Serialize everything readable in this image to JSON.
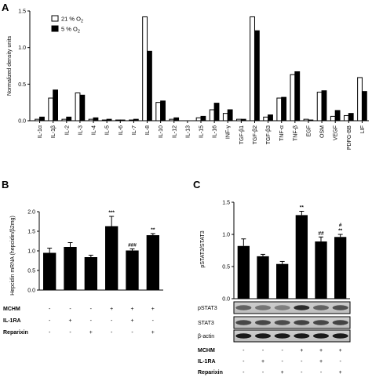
{
  "chart_data": [
    {
      "panel": "A",
      "type": "bar",
      "ylabel": "Normalized density units",
      "ylim": [
        0,
        1.5
      ],
      "yticks": [
        "0.0",
        "0.5",
        "1.0",
        "1.5"
      ],
      "legend": {
        "placement": "top-left",
        "entries": [
          "21 % O",
          "5 % O"
        ],
        "subscript": "2"
      },
      "categories": [
        "IL-1α",
        "IL-1β",
        "IL-2",
        "IL-3",
        "IL-4",
        "IL-5",
        "IL-6",
        "IL-7",
        "IL-8",
        "IL-10",
        "IL-12",
        "IL-13",
        "IL-15",
        "IL-16",
        "INF-γ",
        "TGF-β1",
        "TGF-β2",
        "TGF-β3",
        "TNF-α",
        "TNF-β",
        "EGF",
        "OSM",
        "VEGF",
        "PDFG-BB",
        "LIF"
      ],
      "series": [
        {
          "name": "21 % O2",
          "color": "#ffffff",
          "values": [
            0.02,
            0.31,
            0.02,
            0.38,
            0.02,
            0.01,
            0.01,
            0.01,
            1.42,
            0.25,
            0.02,
            0.0,
            0.04,
            0.15,
            0.1,
            0.02,
            1.42,
            0.05,
            0.31,
            0.63,
            0.02,
            0.39,
            0.06,
            0.07,
            0.59
          ]
        },
        {
          "name": "5 % O2",
          "color": "#000000",
          "values": [
            0.05,
            0.42,
            0.05,
            0.35,
            0.04,
            0.02,
            0.01,
            0.02,
            0.95,
            0.27,
            0.04,
            0.0,
            0.06,
            0.24,
            0.15,
            0.02,
            1.23,
            0.08,
            0.32,
            0.67,
            0.01,
            0.41,
            0.14,
            0.1,
            0.4
          ]
        }
      ]
    },
    {
      "panel": "B",
      "type": "bar",
      "ylabel": "Hepcidin mRNA (hepcidin/β2mg)",
      "ylim": [
        0,
        2.0
      ],
      "yticks": [
        "0.0",
        "0.5",
        "1.0",
        "1.5",
        "2.0"
      ],
      "values": [
        0.95,
        1.1,
        0.84,
        1.63,
        1.01,
        1.4
      ],
      "errors": [
        0.12,
        0.11,
        0.05,
        0.25,
        0.04,
        0.04
      ],
      "significance": [
        "",
        "",
        "",
        "***",
        "###",
        "**"
      ],
      "treatments": [
        {
          "name": "MCHM",
          "signs": [
            "-",
            "-",
            "-",
            "+",
            "+",
            "+"
          ]
        },
        {
          "name": "IL-1RA",
          "signs": [
            "-",
            "+",
            "-",
            "-",
            "+",
            "-"
          ]
        },
        {
          "name": "Reparixin",
          "signs": [
            "-",
            "-",
            "+",
            "-",
            "-",
            "+"
          ]
        }
      ]
    },
    {
      "panel": "C",
      "type": "bar",
      "ylabel": "pSTAT3/STAT3",
      "ylim": [
        0,
        1.5
      ],
      "yticks": [
        "0.0",
        "0.5",
        "1.0",
        "1.5"
      ],
      "values": [
        0.82,
        0.66,
        0.54,
        1.3,
        0.89,
        0.96
      ],
      "errors": [
        0.11,
        0.03,
        0.04,
        0.06,
        0.07,
        0.04
      ],
      "significance": [
        "",
        "",
        "",
        "**",
        "##",
        "**"
      ],
      "significance2": [
        "",
        "",
        "",
        "",
        "",
        "#"
      ],
      "blots": [
        "pSTAT3",
        "STAT3",
        "β-actin"
      ],
      "treatments": [
        {
          "name": "MCHM",
          "signs": [
            "-",
            "-",
            "-",
            "+",
            "+",
            "+"
          ]
        },
        {
          "name": "IL-1RA",
          "signs": [
            "-",
            "+",
            "-",
            "-",
            "+",
            "-"
          ]
        },
        {
          "name": "Reparixin",
          "signs": [
            "-",
            "-",
            "+",
            "-",
            "-",
            "+"
          ]
        }
      ]
    }
  ]
}
